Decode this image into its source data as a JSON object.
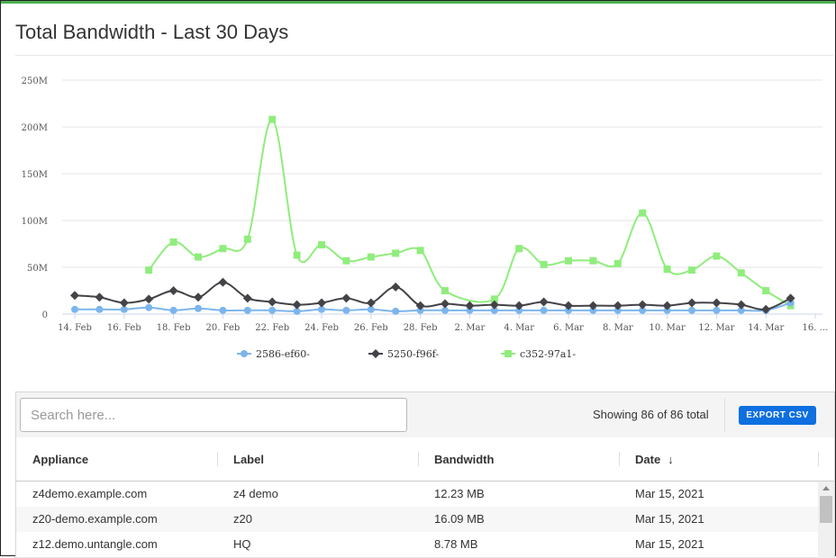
{
  "page": {
    "title": "Total Bandwidth - Last 30 Days"
  },
  "colors": {
    "accent_top": "#4caf50",
    "series_blue": "#7cb5ec",
    "series_black": "#434348",
    "series_green": "#90ed7d",
    "export_button": "#0d6fe0"
  },
  "chart_data": {
    "type": "line",
    "title": "",
    "xlabel": "",
    "ylabel": "",
    "ylim": [
      0,
      250000000
    ],
    "yticks": [
      "0",
      "50M",
      "100M",
      "150M",
      "200M",
      "250M"
    ],
    "grid": true,
    "legend_position": "bottom",
    "x_tick_labels": [
      "14. Feb",
      "16. Feb",
      "18. Feb",
      "20. Feb",
      "22. Feb",
      "24. Feb",
      "26. Feb",
      "28. Feb",
      "2. Mar",
      "4. Mar",
      "6. Mar",
      "8. Mar",
      "10. Mar",
      "12. Mar",
      "14. Mar",
      "16. …"
    ],
    "x_tick_dates": [
      "2021-02-14",
      "2021-02-16",
      "2021-02-18",
      "2021-02-20",
      "2021-02-22",
      "2021-02-24",
      "2021-02-26",
      "2021-02-28",
      "2021-03-02",
      "2021-03-04",
      "2021-03-06",
      "2021-03-08",
      "2021-03-10",
      "2021-03-12",
      "2021-03-14",
      "2021-03-16"
    ],
    "x": [
      "2021-02-14",
      "2021-02-15",
      "2021-02-16",
      "2021-02-17",
      "2021-02-18",
      "2021-02-19",
      "2021-02-20",
      "2021-02-21",
      "2021-02-22",
      "2021-02-23",
      "2021-02-24",
      "2021-02-25",
      "2021-02-26",
      "2021-02-27",
      "2021-02-28",
      "2021-03-01",
      "2021-03-02",
      "2021-03-03",
      "2021-03-04",
      "2021-03-05",
      "2021-03-06",
      "2021-03-07",
      "2021-03-08",
      "2021-03-09",
      "2021-03-10",
      "2021-03-11",
      "2021-03-12",
      "2021-03-13",
      "2021-03-14",
      "2021-03-15"
    ],
    "series": [
      {
        "name": "2586-ef60-",
        "color": "#7cb5ec",
        "marker": "circle",
        "values": [
          5000000,
          5000000,
          5000000,
          7000000,
          4000000,
          6000000,
          4000000,
          4000000,
          4000000,
          3000000,
          5000000,
          4000000,
          5000000,
          3000000,
          4000000,
          4000000,
          4000000,
          4000000,
          4000000,
          4000000,
          4000000,
          4000000,
          4000000,
          4000000,
          4000000,
          4000000,
          4000000,
          4000000,
          4000000,
          12000000
        ]
      },
      {
        "name": "5250-f96f-",
        "color": "#434348",
        "marker": "diamond",
        "values": [
          20000000,
          18000000,
          12000000,
          16000000,
          25000000,
          18000000,
          34000000,
          17000000,
          13000000,
          10000000,
          12000000,
          17000000,
          12000000,
          29000000,
          9000000,
          11000000,
          9000000,
          10000000,
          9000000,
          13000000,
          9000000,
          9000000,
          9000000,
          10000000,
          9000000,
          12000000,
          12000000,
          10000000,
          5000000,
          17000000
        ]
      },
      {
        "name": "c352-97a1-",
        "color": "#90ed7d",
        "marker": "square",
        "values": [
          null,
          null,
          null,
          47000000,
          77000000,
          61000000,
          70000000,
          80000000,
          208000000,
          63000000,
          74000000,
          57000000,
          61000000,
          65000000,
          68000000,
          25000000,
          null,
          16000000,
          70000000,
          53000000,
          57000000,
          57000000,
          54000000,
          108000000,
          48000000,
          47000000,
          62000000,
          44000000,
          25000000,
          9000000
        ]
      }
    ]
  },
  "table": {
    "search_placeholder": "Search here...",
    "showing_text": "Showing 86 of 86 total",
    "export_label": "EXPORT CSV",
    "columns": [
      "Appliance",
      "Label",
      "Bandwidth",
      "Date"
    ],
    "sort_indicator": "↓",
    "rows": [
      {
        "appliance": "z4demo.example.com",
        "label": "z4 demo",
        "bandwidth": "12.23 MB",
        "date": "Mar 15, 2021"
      },
      {
        "appliance": "z20-demo.example.com",
        "label": "z20",
        "bandwidth": "16.09 MB",
        "date": "Mar 15, 2021"
      },
      {
        "appliance": "z12.demo.untangle.com",
        "label": "HQ",
        "bandwidth": "8.78 MB",
        "date": "Mar 15, 2021"
      }
    ]
  }
}
